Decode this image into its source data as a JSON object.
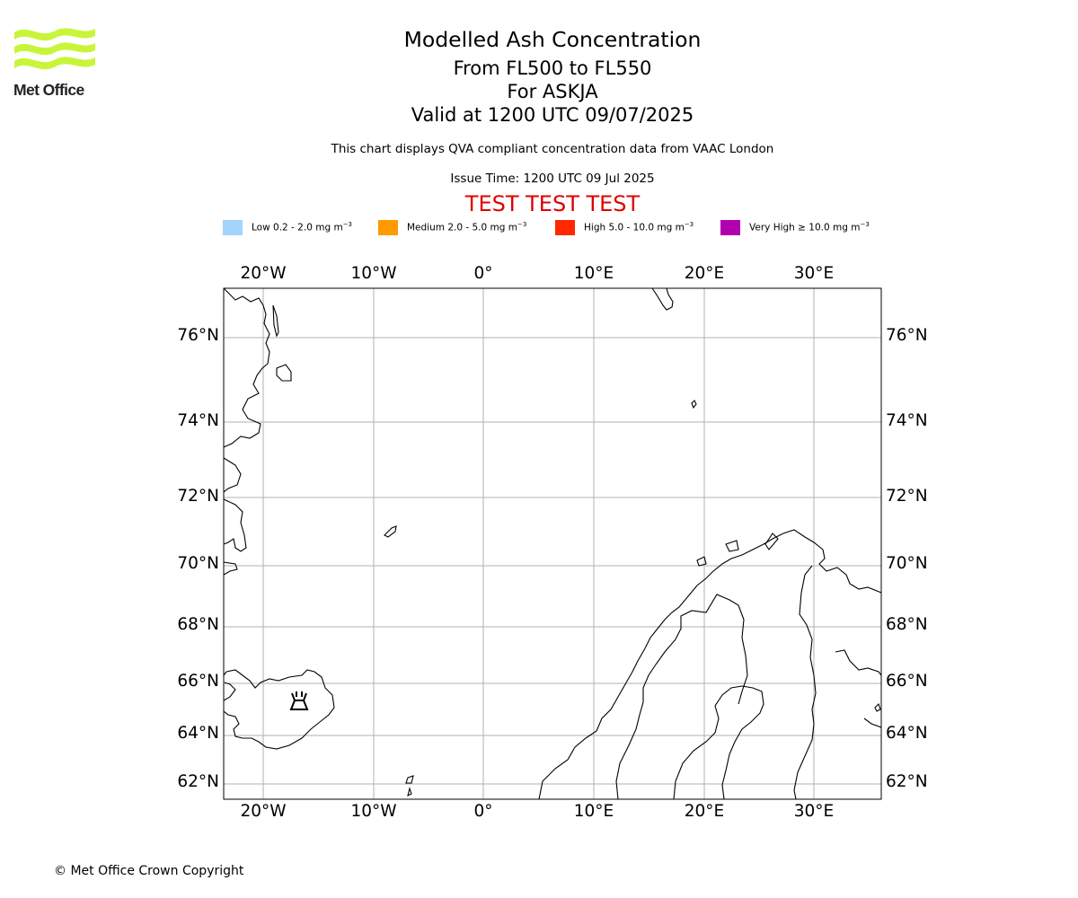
{
  "logo": {
    "brand": "Met Office"
  },
  "header": {
    "title": "Modelled Ash Concentration",
    "flight_levels": "From FL500 to FL550",
    "volcano_line": "For ASKJA",
    "valid_line": "Valid at 1200 UTC 09/07/2025",
    "description": "This chart displays QVA compliant concentration data from VAAC London",
    "issue_time": "Issue Time: 1200 UTC 09 Jul 2025",
    "test_banner": "TEST TEST TEST"
  },
  "legend": [
    {
      "label": "Low 0.2 - 2.0 mg m",
      "exponent": "−3",
      "color": "#a3d4fb"
    },
    {
      "label": "Medium 2.0 - 5.0 mg m",
      "exponent": "−3",
      "color": "#ff9a00"
    },
    {
      "label": "High 5.0 - 10.0 mg m",
      "exponent": "−3",
      "color": "#ff2800"
    },
    {
      "label": "Very High  ≥  10.0 mg m",
      "exponent": "−3",
      "color": "#b000b0"
    }
  ],
  "chart_data": {
    "type": "map",
    "projection": "polar-stereographic",
    "extent": {
      "lon": [
        -23.5,
        36
      ],
      "lat": [
        61.5,
        77.5
      ]
    },
    "lon_ticks": [
      "20°W",
      "10°W",
      "0°",
      "10°E",
      "20°E",
      "30°E"
    ],
    "lat_ticks": [
      "76°N",
      "74°N",
      "72°N",
      "70°N",
      "68°N",
      "66°N",
      "64°N",
      "62°N"
    ],
    "gridlines": true,
    "volcano": {
      "name": "ASKJA",
      "lat": 65.03,
      "lon": -16.75
    },
    "ash_polygons": []
  },
  "footer": {
    "copyright": "© Met Office Crown Copyright"
  }
}
